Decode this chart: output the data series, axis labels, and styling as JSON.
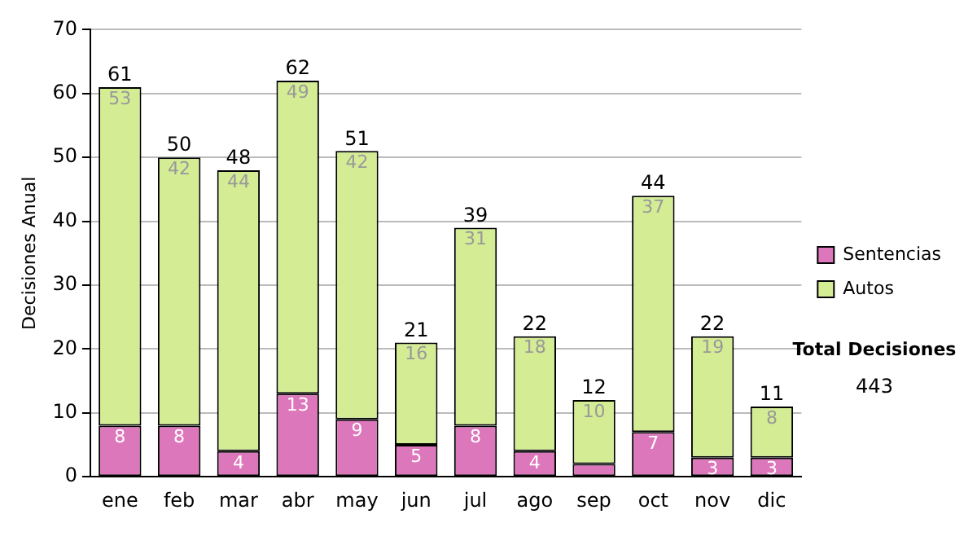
{
  "chart_data": {
    "type": "bar",
    "stacked": true,
    "ylabel": "Decisiones Anual",
    "categories": [
      "ene",
      "feb",
      "mar",
      "abr",
      "may",
      "jun",
      "jul",
      "ago",
      "sep",
      "oct",
      "nov",
      "dic"
    ],
    "series": [
      {
        "name": "Sentencias",
        "color": "#dd77bb",
        "values": [
          8,
          8,
          4,
          13,
          9,
          5,
          8,
          4,
          2,
          7,
          3,
          3
        ],
        "value_labels": [
          "8",
          "8",
          "4",
          "13",
          "9",
          "5",
          "8",
          "4",
          null,
          "7",
          "3",
          "3"
        ]
      },
      {
        "name": "Autos",
        "color": "#d4ec94",
        "values": [
          53,
          42,
          44,
          49,
          42,
          16,
          31,
          18,
          10,
          37,
          19,
          8
        ],
        "value_labels": [
          "53",
          "42",
          "44",
          "49",
          "42",
          "16",
          "31",
          "18",
          "10",
          "37",
          "19",
          "8"
        ]
      }
    ],
    "totals": [
      "61",
      "50",
      "48",
      "62",
      "51",
      "21",
      "39",
      "22",
      "12",
      "44",
      "22",
      "11"
    ],
    "ylim": [
      0,
      70
    ],
    "yticks": [
      0,
      10,
      20,
      30,
      40,
      50,
      60,
      70
    ],
    "grid": "y",
    "legend": "right",
    "annotations": [
      "Total Decisiones",
      "443"
    ]
  }
}
